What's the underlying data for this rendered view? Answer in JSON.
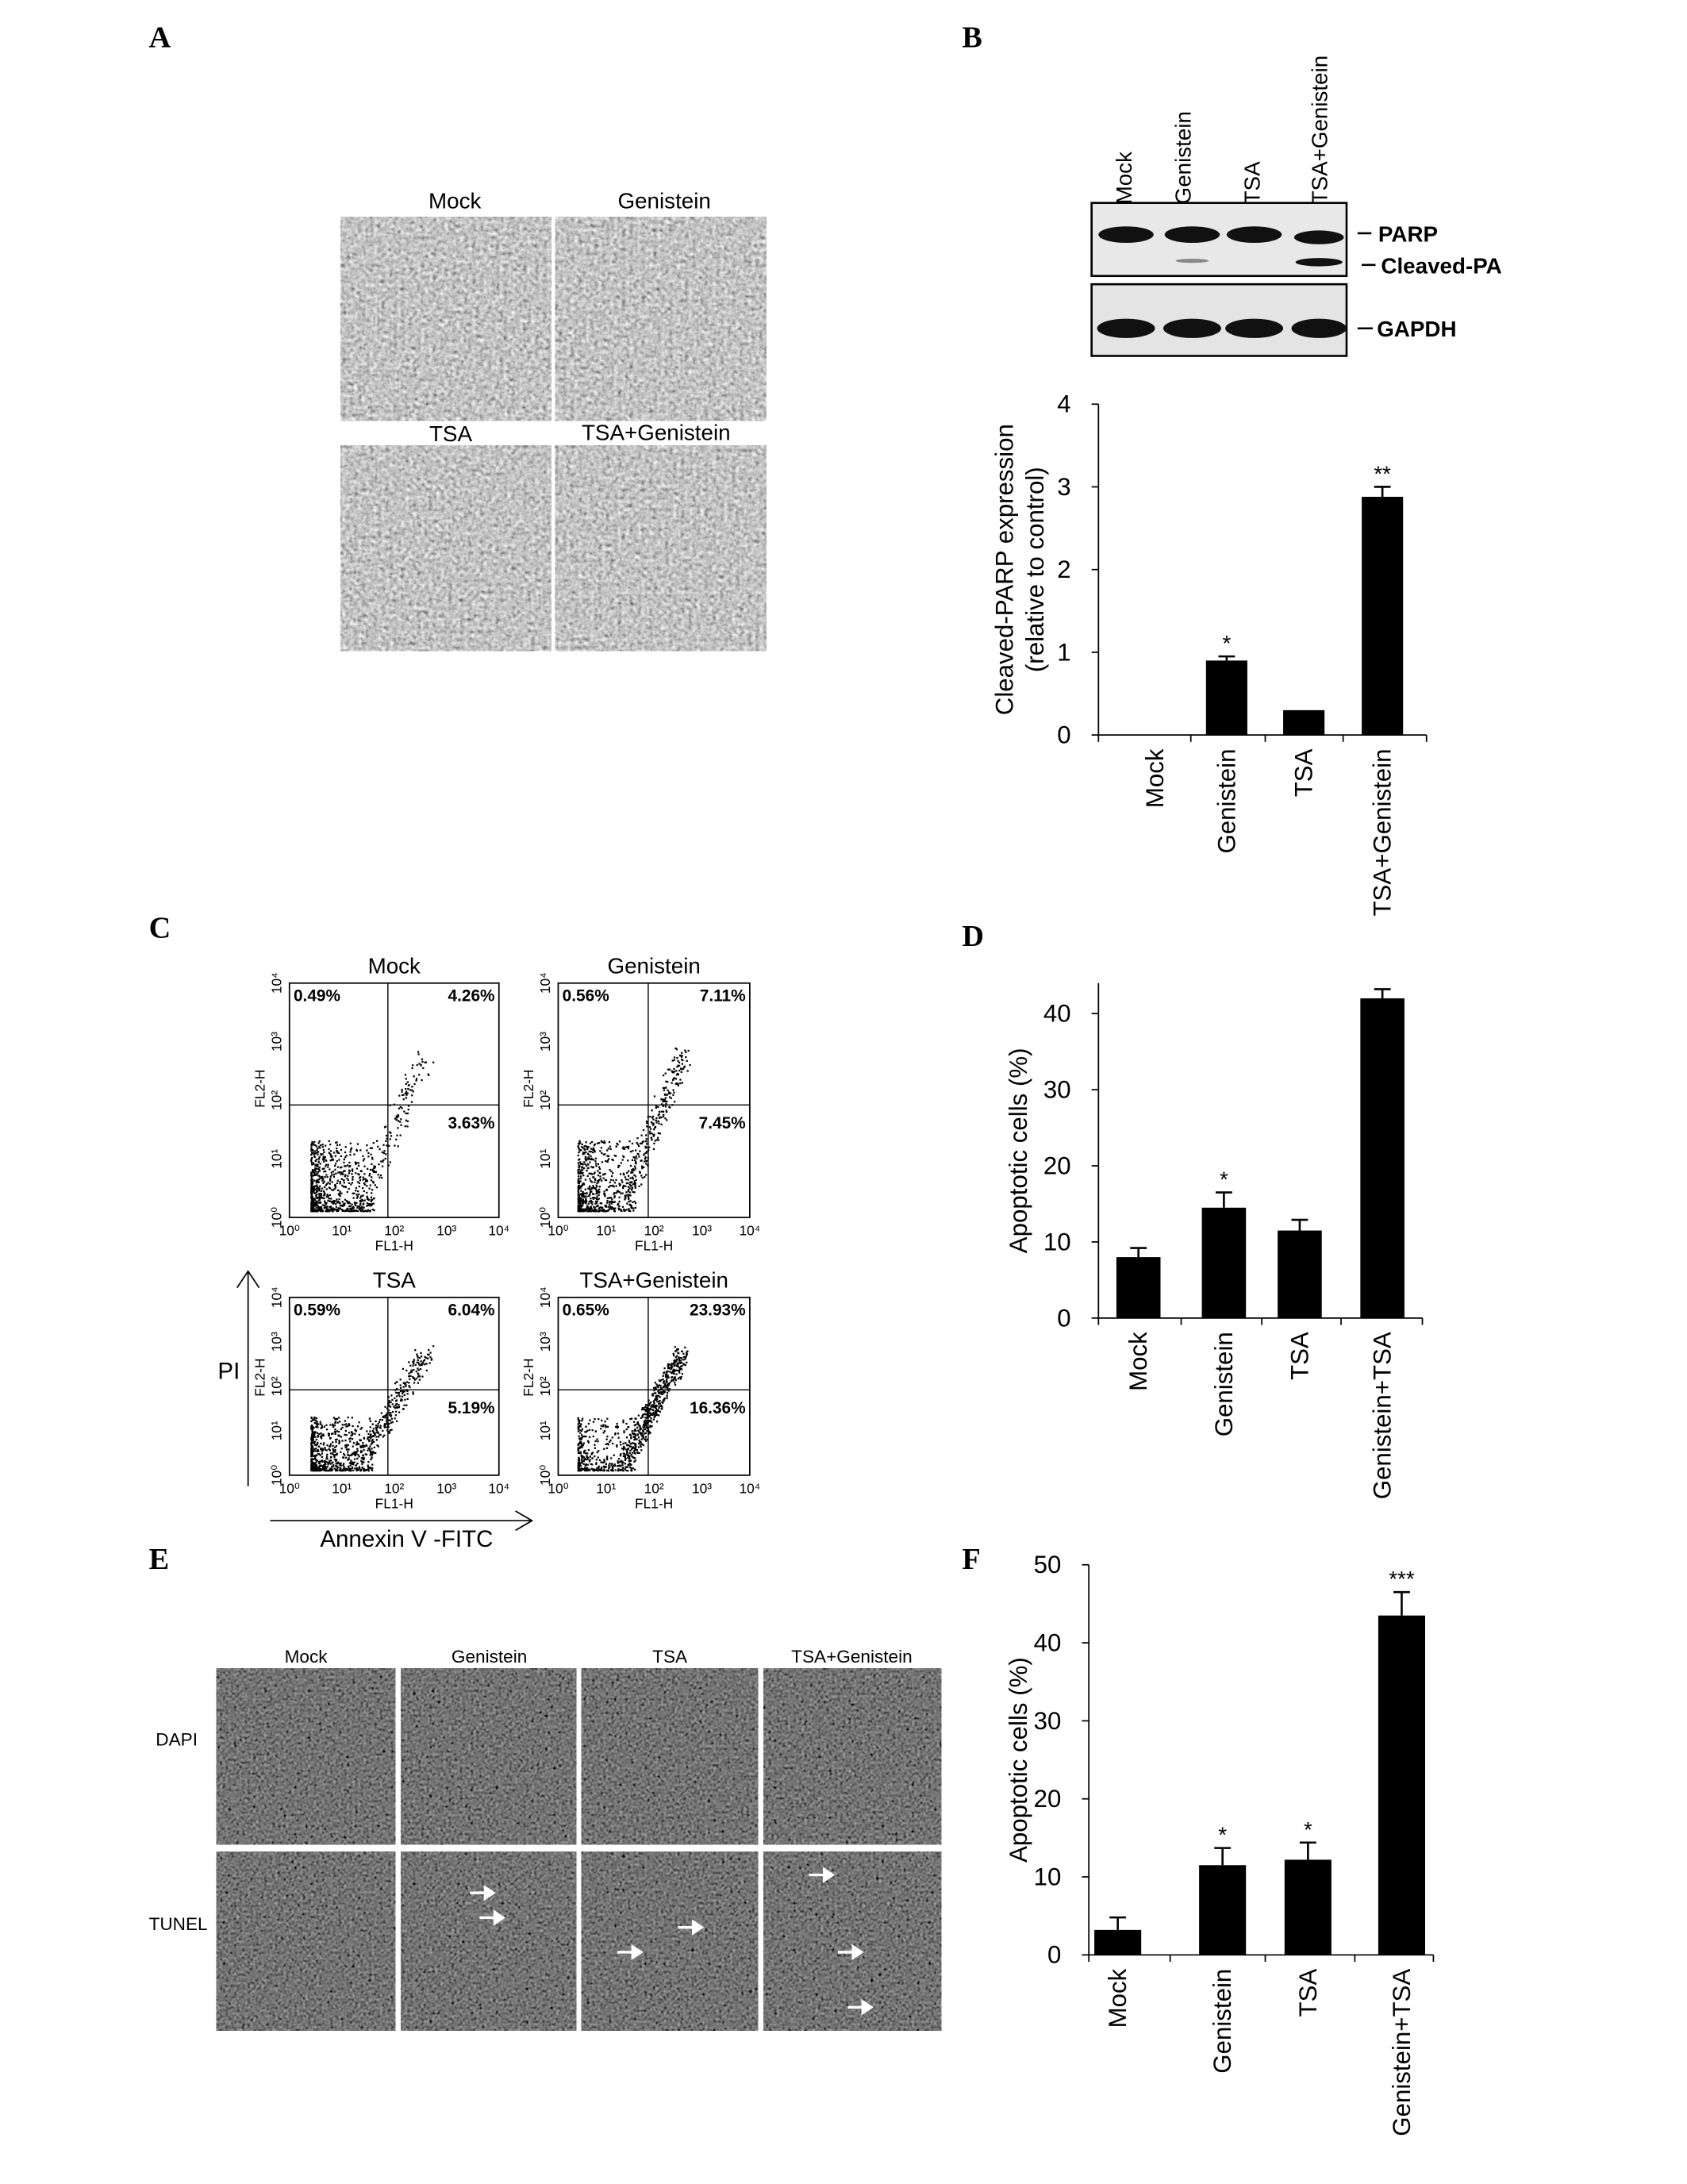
{
  "panel_labels": [
    "A",
    "B",
    "C",
    "D",
    "E",
    "F"
  ],
  "panel_a": {
    "images": [
      "Mock",
      "Genistein",
      "TSA",
      "TSA+Genistein"
    ]
  },
  "panel_b_blot": {
    "lanes": [
      "Mock",
      "Genistein",
      "TSA",
      "TSA+Genistein"
    ],
    "bands": [
      "PARP",
      "Cleaved-PA",
      "GAPDH"
    ]
  },
  "panel_c": {
    "plots": [
      {
        "title": "Mock",
        "quadrants": [
          "0.49%",
          "4.26%",
          "3.63%"
        ]
      },
      {
        "title": "Genistein",
        "quadrants": [
          "0.56%",
          "7.11%",
          "7.45%"
        ]
      },
      {
        "title": "TSA",
        "quadrants": [
          "0.59%",
          "6.04%",
          "5.19%"
        ]
      },
      {
        "title": "TSA+Genistein",
        "quadrants": [
          "0.65%",
          "23.93%",
          "16.36%"
        ]
      }
    ],
    "axis_ticks": [
      "10⁰",
      "10¹",
      "10²",
      "10³",
      "10⁴"
    ],
    "x_label": "FL1-H",
    "y_label": "FL2-H",
    "y_axis": "PI",
    "x_axis": "Annexin V -FITC"
  },
  "panel_e": {
    "columns": [
      "Mock",
      "Genistein",
      "TSA",
      "TSA+Genistein"
    ],
    "rows": [
      "DAPI",
      "TUNEL"
    ]
  },
  "chart_data": [
    {
      "type": "bar",
      "ylabel": [
        "Cleaved-PARP expression",
        "(relative to control)"
      ],
      "categories": [
        "Mock",
        "Genistein",
        "TSA",
        "TSA+Genistein"
      ],
      "values": [
        0,
        0.9,
        0.3,
        2.88
      ],
      "errors": [
        null,
        0.05,
        null,
        0.12
      ],
      "annotations": [
        null,
        "*",
        null,
        "**"
      ],
      "color": "#000000",
      "ylim": [
        0,
        4
      ],
      "yticks": [
        0,
        1,
        2,
        3,
        4
      ]
    },
    {
      "type": "bar",
      "ylabel": [
        "Apoptotic cells  (%)"
      ],
      "categories": [
        "Mock",
        "Genistein",
        "TSA",
        "Genistein+TSA"
      ],
      "values": [
        8,
        14.5,
        11.5,
        42
      ],
      "errors": [
        1.2,
        2,
        1.4,
        1.2
      ],
      "annotations": [
        null,
        "*",
        null,
        null
      ],
      "color": "#000000",
      "ylim": [
        0,
        44
      ],
      "yticks": [
        0,
        10,
        20,
        30,
        40
      ]
    },
    {
      "type": "bar",
      "ylabel": [
        "Apoptotic cells  (%)"
      ],
      "categories": [
        "Mock",
        "Genistein",
        "TSA",
        "Genistein+TSA"
      ],
      "values": [
        3.2,
        11.5,
        12.2,
        43.5
      ],
      "errors": [
        1.6,
        2.2,
        2.2,
        3
      ],
      "annotations": [
        null,
        "*",
        "*",
        "***"
      ],
      "color": "#000000",
      "ylim": [
        0,
        50
      ],
      "yticks": [
        0,
        10,
        20,
        30,
        40,
        50
      ]
    }
  ]
}
